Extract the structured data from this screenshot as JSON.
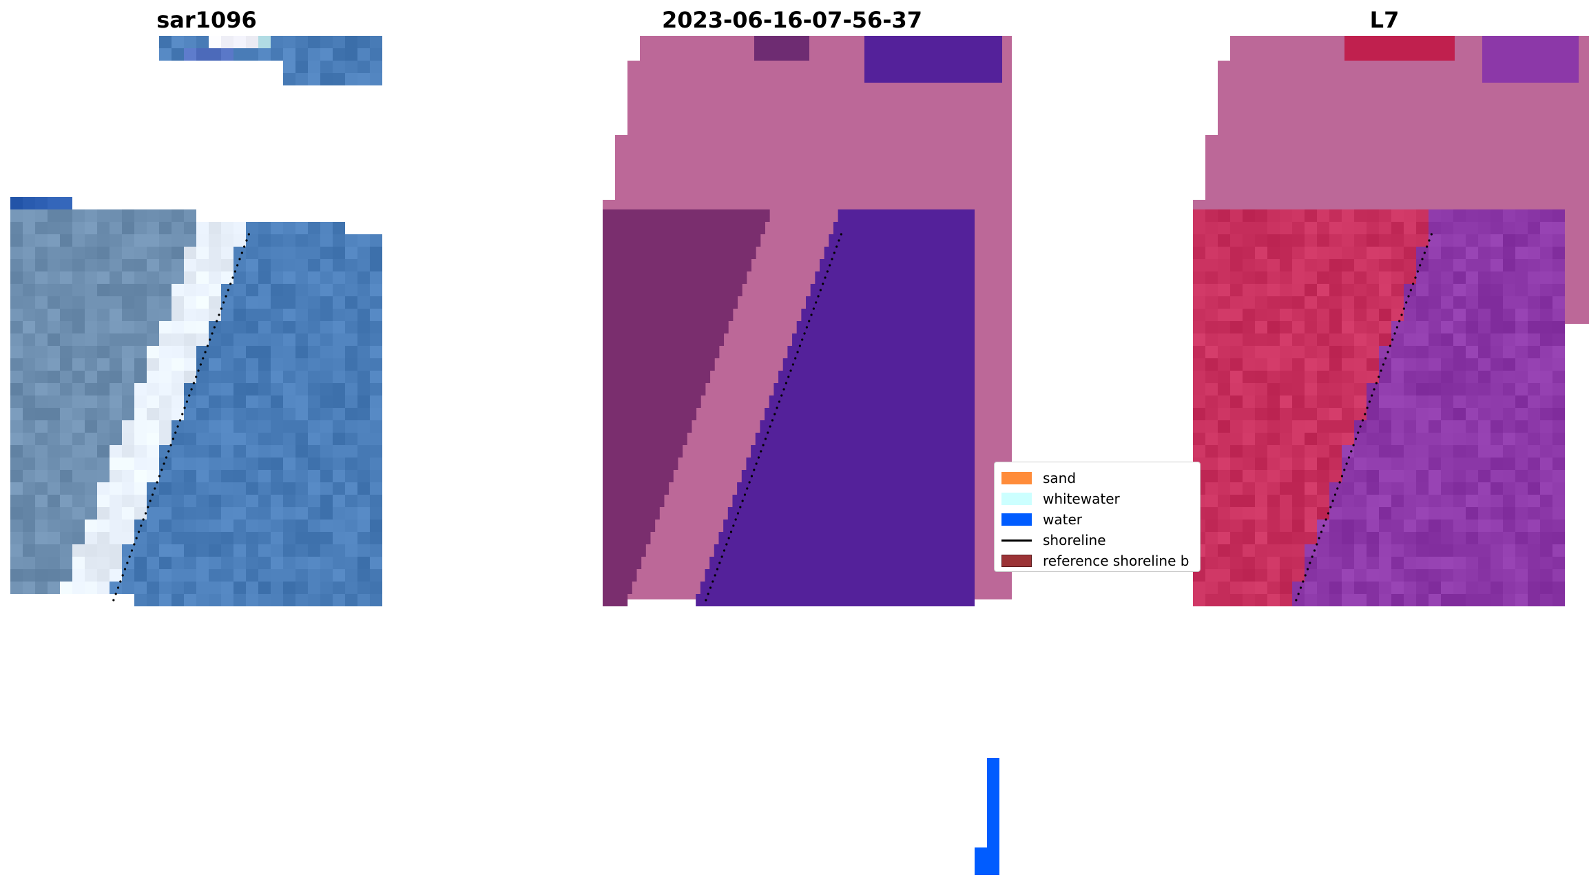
{
  "panels": [
    {
      "title": "sar1096"
    },
    {
      "title": "2023-06-16-07-56-37"
    },
    {
      "title": "L7"
    }
  ],
  "legend": {
    "items": [
      {
        "label": "sand",
        "color": "#FF8C3A",
        "kind": "patch"
      },
      {
        "label": "whitewater",
        "color": "#CCFFFF",
        "kind": "patch"
      },
      {
        "label": "water",
        "color": "#005CFF",
        "kind": "patch"
      },
      {
        "label": "shoreline",
        "color": "#000000",
        "kind": "line"
      },
      {
        "label": "reference shoreline b",
        "color": "#9B3336",
        "kind": "patch"
      }
    ]
  },
  "colors": {
    "rgb_water": "#4A7DB8",
    "rgb_sand": "#6E8FB0",
    "rgb_surf": "#E8F0FA",
    "class_land": "#BC6898",
    "class_water": "#54219A",
    "class_dark_land": "#7A2E6E",
    "class_bright_water": "#005CFF",
    "nir_land": "#C8305E",
    "nir_water": "#8C38A8",
    "nir_top_land": "#BC6898"
  }
}
